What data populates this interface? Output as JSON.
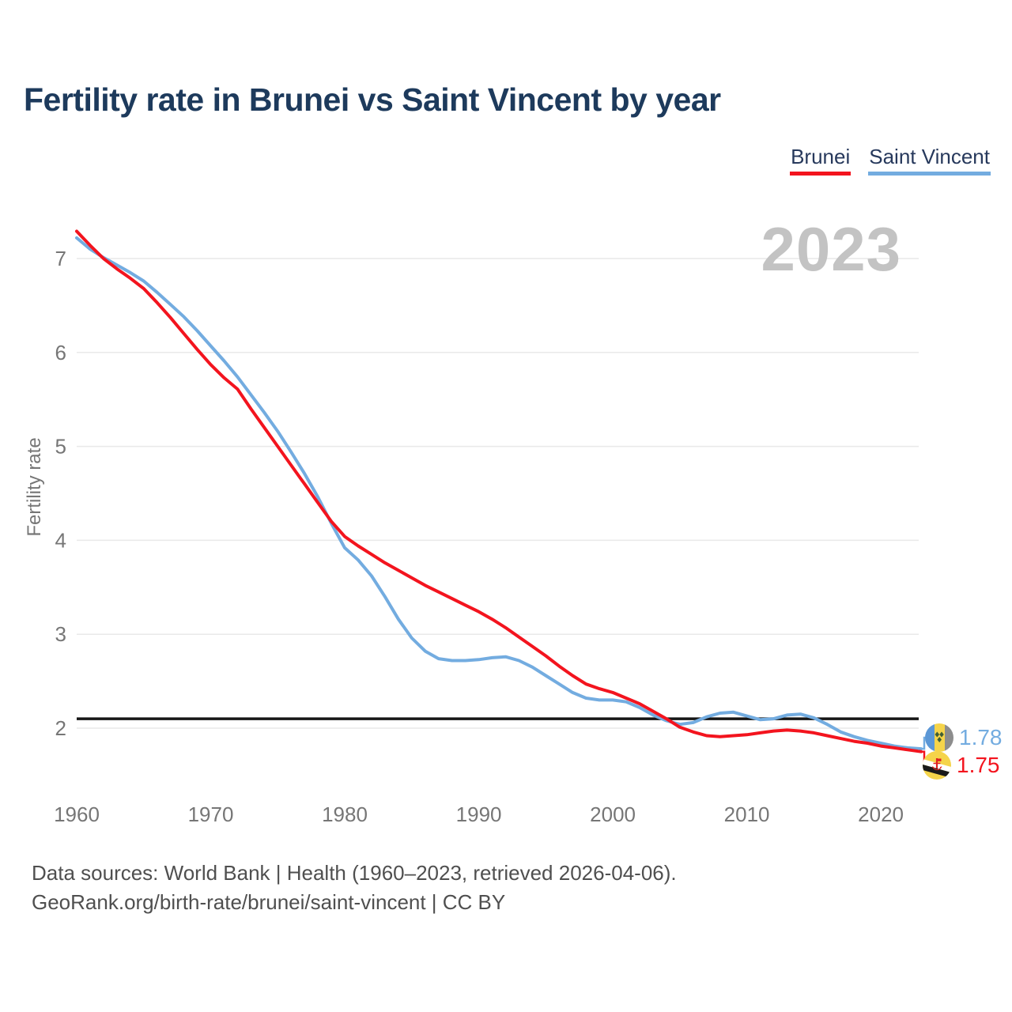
{
  "title": "Fertility rate in Brunei vs Saint Vincent by year",
  "watermark_year": "2023",
  "legend": [
    {
      "label": "Brunei"
    },
    {
      "label": "Saint Vincent"
    }
  ],
  "y_axis": {
    "label": "Fertility rate",
    "ticks": [
      7,
      6,
      5,
      4,
      3,
      2
    ]
  },
  "x_axis": {
    "ticks": [
      1960,
      1970,
      1980,
      1990,
      2000,
      2010,
      2020
    ]
  },
  "end_labels": [
    {
      "series": "Saint Vincent",
      "flag": "saint-vincent-flag",
      "value": "1.78"
    },
    {
      "series": "Brunei",
      "flag": "brunei-flag",
      "value": "1.75"
    }
  ],
  "footer": {
    "line1": "Data sources: World Bank | Health (1960–2023, retrieved 2026-04-06).",
    "line2": "GeoRank.org/birth-rate/brunei/saint-vincent | CC BY"
  },
  "colors": {
    "brunei": "#f3141e",
    "saint_vincent": "#73ace0",
    "title": "#1d3a5c",
    "legend_text": "#27395c",
    "axis_text": "#767676",
    "watermark": "#c3c3c3",
    "grid": "#e9e9e9",
    "reference_line": "#161616",
    "footer_text": "#4f4f4f"
  },
  "chart_data": {
    "type": "line",
    "title": "Fertility rate in Brunei vs Saint Vincent by year",
    "xlabel": "",
    "ylabel": "Fertility rate",
    "xlim": [
      1960,
      2023
    ],
    "ylim": [
      1.6,
      7.4
    ],
    "grid": "horizontal",
    "legend_position": "top-right",
    "reference_line": 2.1,
    "x": [
      1960,
      1961,
      1962,
      1963,
      1964,
      1965,
      1966,
      1967,
      1968,
      1969,
      1970,
      1971,
      1972,
      1973,
      1974,
      1975,
      1976,
      1977,
      1978,
      1979,
      1980,
      1981,
      1982,
      1983,
      1984,
      1985,
      1986,
      1987,
      1988,
      1989,
      1990,
      1991,
      1992,
      1993,
      1994,
      1995,
      1996,
      1997,
      1998,
      1999,
      2000,
      2001,
      2002,
      2003,
      2004,
      2005,
      2006,
      2007,
      2008,
      2009,
      2010,
      2011,
      2012,
      2013,
      2014,
      2015,
      2016,
      2017,
      2018,
      2019,
      2020,
      2021,
      2022,
      2023
    ],
    "series": [
      {
        "name": "Brunei",
        "color": "#f3141e",
        "values": [
          7.29,
          7.14,
          7.0,
          6.89,
          6.79,
          6.68,
          6.53,
          6.37,
          6.2,
          6.03,
          5.87,
          5.73,
          5.61,
          5.4,
          5.2,
          5.0,
          4.8,
          4.6,
          4.4,
          4.2,
          4.04,
          3.94,
          3.85,
          3.76,
          3.68,
          3.6,
          3.52,
          3.45,
          3.38,
          3.31,
          3.24,
          3.16,
          3.07,
          2.97,
          2.87,
          2.77,
          2.66,
          2.56,
          2.47,
          2.42,
          2.38,
          2.32,
          2.26,
          2.18,
          2.1,
          2.01,
          1.96,
          1.92,
          1.91,
          1.92,
          1.93,
          1.95,
          1.97,
          1.98,
          1.97,
          1.95,
          1.92,
          1.89,
          1.86,
          1.84,
          1.81,
          1.79,
          1.77,
          1.75
        ]
      },
      {
        "name": "Saint Vincent",
        "color": "#73ace0",
        "values": [
          7.22,
          7.1,
          7.01,
          6.93,
          6.85,
          6.76,
          6.64,
          6.51,
          6.38,
          6.23,
          6.07,
          5.91,
          5.74,
          5.55,
          5.36,
          5.16,
          4.94,
          4.71,
          4.46,
          4.18,
          3.92,
          3.79,
          3.62,
          3.4,
          3.16,
          2.96,
          2.82,
          2.74,
          2.72,
          2.72,
          2.73,
          2.75,
          2.76,
          2.72,
          2.65,
          2.56,
          2.47,
          2.38,
          2.32,
          2.3,
          2.3,
          2.28,
          2.22,
          2.14,
          2.08,
          2.04,
          2.06,
          2.12,
          2.16,
          2.17,
          2.13,
          2.09,
          2.1,
          2.14,
          2.15,
          2.11,
          2.04,
          1.96,
          1.91,
          1.87,
          1.84,
          1.81,
          1.79,
          1.78
        ]
      }
    ]
  }
}
